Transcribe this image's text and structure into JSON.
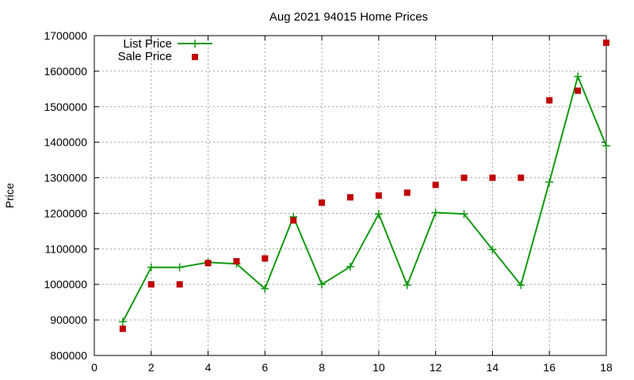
{
  "chart_data": {
    "type": "line",
    "title": "Aug 2021 94015 Home Prices",
    "xlabel": "",
    "ylabel": "Price",
    "xlim": [
      0,
      18
    ],
    "ylim": [
      800000,
      1700000
    ],
    "x_ticks": [
      "0",
      "2",
      "4",
      "6",
      "8",
      "10",
      "12",
      "14",
      "16",
      "18"
    ],
    "y_ticks": [
      "800000",
      "900000",
      "1000000",
      "1100000",
      "1200000",
      "1300000",
      "1400000",
      "1500000",
      "1600000",
      "1700000"
    ],
    "grid": true,
    "legend_position": "top-left",
    "series": [
      {
        "name": "List Price",
        "style": "line+cross",
        "color": "#109910",
        "x": [
          1,
          2,
          3,
          4,
          5,
          6,
          7,
          8,
          9,
          10,
          11,
          12,
          13,
          14,
          15,
          16,
          17,
          18
        ],
        "values": [
          895000,
          1048000,
          1048000,
          1062000,
          1058000,
          988000,
          1190000,
          1000000,
          1050000,
          1198000,
          998000,
          1202000,
          1198000,
          1098000,
          998000,
          1288000,
          1585000,
          1390000
        ]
      },
      {
        "name": "Sale Price",
        "style": "square",
        "color": "#c00000",
        "x": [
          1,
          2,
          3,
          4,
          5,
          6,
          7,
          8,
          9,
          10,
          11,
          12,
          13,
          14,
          15,
          16,
          17,
          18
        ],
        "values": [
          875000,
          1000000,
          1000000,
          1060000,
          1065000,
          1073000,
          1180000,
          1230000,
          1245000,
          1250000,
          1258000,
          1280000,
          1300000,
          1300000,
          1300000,
          1518000,
          1545000,
          1680000
        ]
      }
    ]
  }
}
